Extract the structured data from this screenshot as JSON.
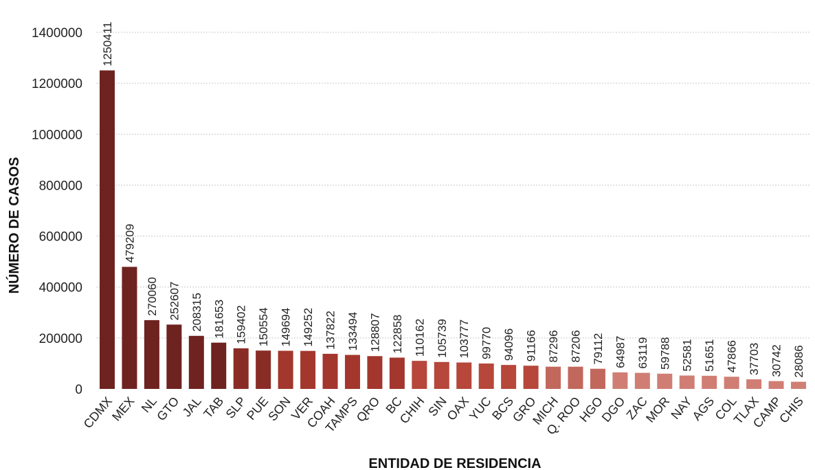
{
  "chart_data": {
    "type": "bar",
    "categories": [
      "CDMX",
      "MEX",
      "NL",
      "GTO",
      "JAL",
      "TAB",
      "SLP",
      "PUE",
      "SON",
      "VER",
      "COAH",
      "TAMPS",
      "QRO",
      "BC",
      "CHIH",
      "SIN",
      "OAX",
      "YUC",
      "BCS",
      "GRO",
      "MICH",
      "Q. ROO",
      "HGO",
      "DGO",
      "ZAC",
      "MOR",
      "NAY",
      "AGS",
      "COL",
      "TLAX",
      "CAMP",
      "CHIS"
    ],
    "values": [
      1250411,
      479209,
      270060,
      252607,
      208315,
      181653,
      159402,
      150554,
      149694,
      149252,
      137822,
      133494,
      128807,
      122858,
      110162,
      105739,
      103777,
      99770,
      94096,
      91166,
      87296,
      87206,
      79112,
      64987,
      63119,
      59788,
      52581,
      51651,
      47866,
      37703,
      30742,
      28086
    ],
    "xlabel": "ENTIDAD DE RESIDENCIA",
    "ylabel": "NÚMERO DE CASOS",
    "ylim": [
      0,
      1400000
    ],
    "yticks": [
      0,
      200000,
      400000,
      600000,
      800000,
      1000000,
      1200000,
      1400000
    ],
    "grid": true,
    "bar_colors": [
      "#6e2320",
      "#6e2320",
      "#6e2320",
      "#6e2320",
      "#6e2320",
      "#6e2320",
      "#8a2c26",
      "#8a2c26",
      "#a3362d",
      "#a3362d",
      "#a3362d",
      "#a3362d",
      "#a3362d",
      "#a3362d",
      "#b6473a",
      "#b6473a",
      "#b6473a",
      "#b6473a",
      "#b6473a",
      "#b6473a",
      "#c2675c",
      "#c2675c",
      "#c2675c",
      "#d07e74",
      "#d07e74",
      "#d07e74",
      "#d07e74",
      "#d07e74",
      "#d07e74",
      "#d07e74",
      "#d07e74",
      "#d07e74"
    ]
  }
}
